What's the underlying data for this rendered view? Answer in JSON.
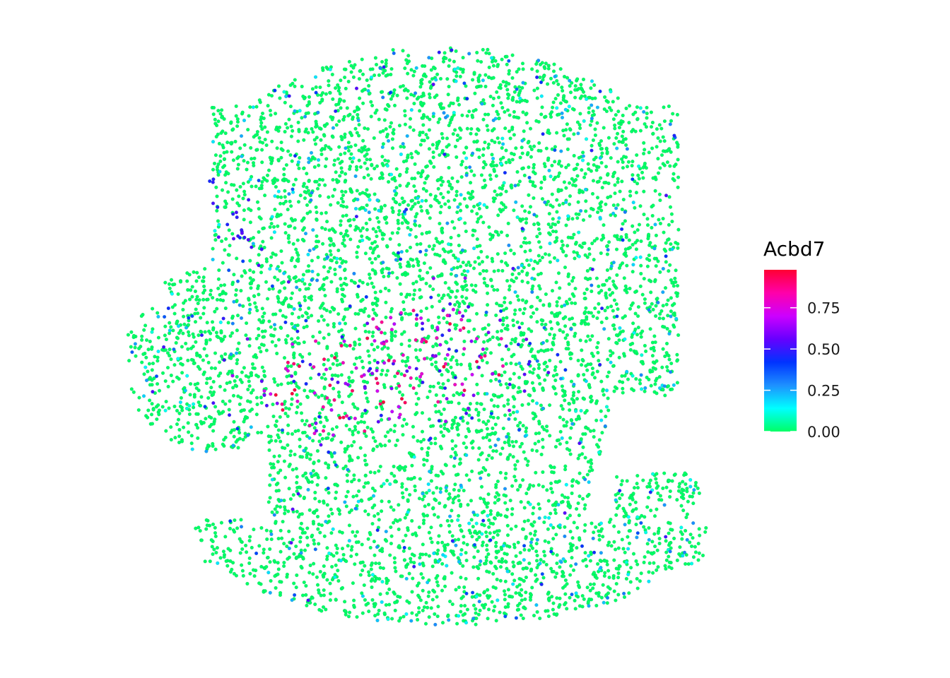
{
  "chart_data": {
    "type": "scatter",
    "title": "",
    "xlabel": "",
    "ylabel": "",
    "grid": false,
    "axes_visible": false,
    "point_size": "small",
    "colorbar": {
      "title": "Acbd7",
      "placement": "right",
      "range": [
        0.0,
        0.98
      ],
      "ticks": [
        0.0,
        0.25,
        0.5,
        0.75
      ],
      "tick_labels": [
        "0.00",
        "0.25",
        "0.50",
        "0.75"
      ],
      "palette": [
        "#00FF66",
        "#00FFFF",
        "#1E90FF",
        "#0033FF",
        "#6600FF",
        "#CC00FF",
        "#FF00AA",
        "#FF0033"
      ]
    },
    "data_summary": {
      "majority_value": 0.0,
      "high_value_region": "center-left of the tissue section",
      "description_shape": "tissue section outline with a lobe on the left and a curved band at the bottom"
    }
  }
}
